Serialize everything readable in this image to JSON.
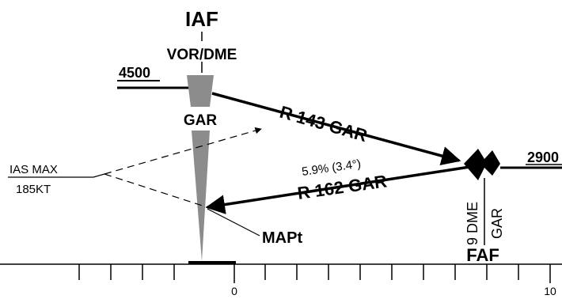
{
  "iaf": {
    "label": "IAF",
    "fix": "VOR/DME",
    "altitude": "4500",
    "station": "GAR"
  },
  "tracks": {
    "inbound": "R 143 GAR",
    "outbound": "R 162 GAR",
    "gradient": "5.9% (3.4°)"
  },
  "speed_limit": {
    "label": "IAS MAX",
    "value": "185KT"
  },
  "mapt": {
    "label": "MAPt"
  },
  "faf": {
    "label": "FAF",
    "altitude": "2900",
    "dme": "9 DME",
    "station": "GAR"
  },
  "scale": {
    "labels": [
      "0",
      "10"
    ]
  },
  "colors": {
    "ink": "#000000",
    "symbol_gray": "#8c8c8c"
  }
}
